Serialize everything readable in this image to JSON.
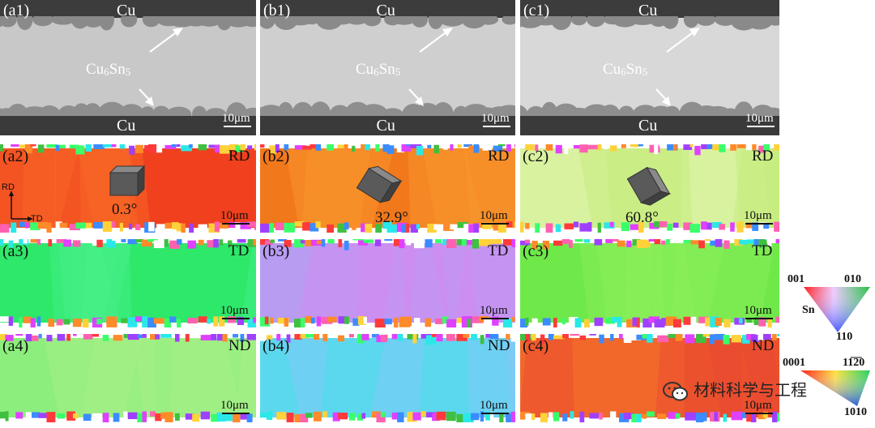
{
  "sem": [
    {
      "label": "(a1)",
      "cu_top": "Cu",
      "cu_bottom": "Cu",
      "phase_main": "Cu",
      "phase_sub1": "6",
      "phase_mid": "Sn",
      "phase_sub2": "5",
      "scale": "10μm"
    },
    {
      "label": "(b1)",
      "cu_top": "Cu",
      "cu_bottom": "Cu",
      "phase_main": "Cu",
      "phase_sub1": "6",
      "phase_mid": "Sn",
      "phase_sub2": "5",
      "scale": "10μm"
    },
    {
      "label": "(c1)",
      "cu_top": "Cu",
      "cu_bottom": "Cu",
      "phase_main": "Cu",
      "phase_sub1": "6",
      "phase_mid": "Sn",
      "phase_sub2": "5",
      "scale": "10μm"
    }
  ],
  "ebsd_rows": [
    {
      "direction": "RD",
      "panels": [
        {
          "label": "(a2)",
          "scale": "10μm",
          "angle": "0.3°",
          "base_color": "#f0401e",
          "alt_color": "#f86a28"
        },
        {
          "label": "(b2)",
          "scale": "10μm",
          "angle": "32.9°",
          "base_color": "#f2781c",
          "alt_color": "#f99a2e"
        },
        {
          "label": "(c2)",
          "scale": "10μm",
          "angle": "60.8°",
          "base_color": "#d9f2a0",
          "alt_color": "#c4ec7a"
        }
      ]
    },
    {
      "direction": "TD",
      "panels": [
        {
          "label": "(a3)",
          "scale": "10μm",
          "base_color": "#2ee86a",
          "alt_color": "#48f08a"
        },
        {
          "label": "(b3)",
          "scale": "10μm",
          "base_color": "#b89cf2",
          "alt_color": "#d48af0"
        },
        {
          "label": "(c3)",
          "scale": "10μm",
          "base_color": "#6fe84a",
          "alt_color": "#8cf05a"
        }
      ]
    },
    {
      "direction": "ND",
      "panels": [
        {
          "label": "(a4)",
          "scale": "10μm",
          "base_color": "#8cee7c",
          "alt_color": "#a8f088"
        },
        {
          "label": "(b4)",
          "scale": "10μm",
          "base_color": "#5cd8ee",
          "alt_color": "#86c8f6"
        },
        {
          "label": "(c4)",
          "scale": "10μm",
          "base_color": "#f2682a",
          "alt_color": "#e84830"
        }
      ]
    }
  ],
  "axes": {
    "vertical": "RD",
    "horizontal": "TD"
  },
  "legend_sn": {
    "top_left": "001",
    "top_right": "010",
    "bottom": "110",
    "phase": "Sn"
  },
  "legend_hex": {
    "top_left": "0001",
    "top_right": "11̅2̅0",
    "bottom": "1010"
  },
  "watermark": "材料科学与工程"
}
